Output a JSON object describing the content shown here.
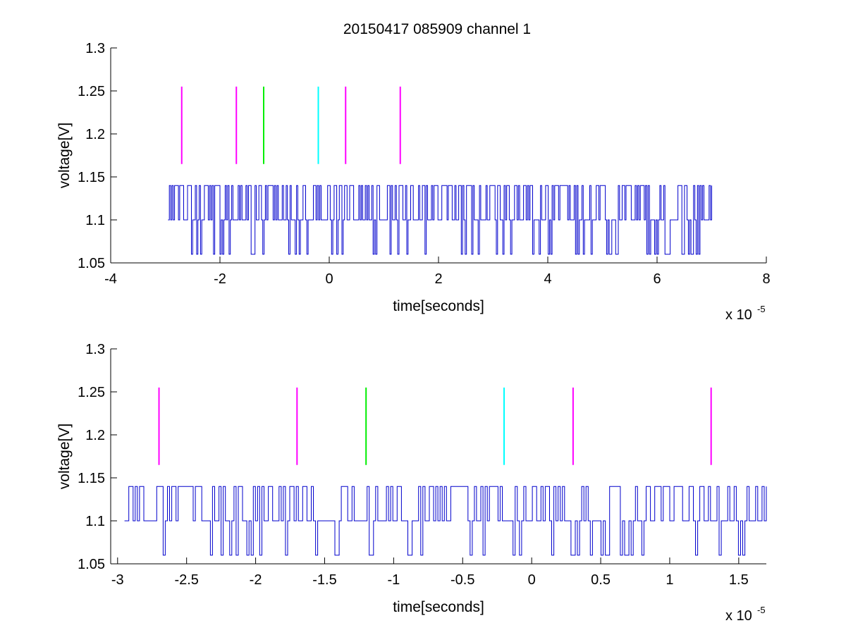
{
  "figure": {
    "title": "20150417 085909 channel 1",
    "exponent_base": "x 10",
    "exponent_power": "-5"
  },
  "colors": {
    "signal": "#0000cc",
    "marker_magenta": "#ff00ff",
    "marker_green": "#00ee00",
    "marker_cyan": "#00ffff",
    "axis": "#000000"
  },
  "chart_data": [
    {
      "type": "line",
      "title": "20150417 085909 channel 1",
      "xlabel": "time[seconds]",
      "ylabel": "voltage[V]",
      "x_scale_label": "x 10^-5",
      "xlim": [
        -4,
        8
      ],
      "ylim": [
        1.05,
        1.3
      ],
      "xticks": [
        -4,
        -2,
        0,
        2,
        4,
        6,
        8
      ],
      "xtick_labels": [
        "-4",
        "-2",
        "0",
        "2",
        "4",
        "6",
        "8"
      ],
      "yticks": [
        1.05,
        1.1,
        1.15,
        1.2,
        1.25,
        1.3
      ],
      "ytick_labels": [
        "1.05",
        "1.1",
        "1.15",
        "1.2",
        "1.25",
        "1.3"
      ],
      "grid": false,
      "signal": {
        "x_range": [
          -2.95,
          7.0
        ],
        "levels": [
          1.06,
          1.1,
          1.14
        ],
        "baseline": 1.1
      },
      "markers": [
        {
          "x": -2.7,
          "y_range": [
            1.165,
            1.255
          ],
          "color": "magenta"
        },
        {
          "x": -1.7,
          "y_range": [
            1.165,
            1.255
          ],
          "color": "magenta"
        },
        {
          "x": -1.2,
          "y_range": [
            1.165,
            1.255
          ],
          "color": "green"
        },
        {
          "x": -0.2,
          "y_range": [
            1.165,
            1.255
          ],
          "color": "cyan"
        },
        {
          "x": 0.3,
          "y_range": [
            1.165,
            1.255
          ],
          "color": "magenta"
        },
        {
          "x": 1.3,
          "y_range": [
            1.165,
            1.255
          ],
          "color": "magenta"
        }
      ]
    },
    {
      "type": "line",
      "xlabel": "time[seconds]",
      "ylabel": "voltage[V]",
      "x_scale_label": "x 10^-5",
      "xlim": [
        -3.05,
        1.7
      ],
      "ylim": [
        1.05,
        1.3
      ],
      "xticks": [
        -3,
        -2.5,
        -2,
        -1.5,
        -1,
        -0.5,
        0,
        0.5,
        1,
        1.5
      ],
      "xtick_labels": [
        "-3",
        "-2.5",
        "-2",
        "-1.5",
        "-1",
        "-0.5",
        "0",
        "0.5",
        "1",
        "1.5"
      ],
      "yticks": [
        1.05,
        1.1,
        1.15,
        1.2,
        1.25,
        1.3
      ],
      "ytick_labels": [
        "1.05",
        "1.1",
        "1.15",
        "1.2",
        "1.25",
        "1.3"
      ],
      "grid": false,
      "signal": {
        "x_range": [
          -2.95,
          1.7
        ],
        "levels": [
          1.06,
          1.1,
          1.14
        ],
        "baseline": 1.1
      },
      "markers": [
        {
          "x": -2.7,
          "y_range": [
            1.165,
            1.255
          ],
          "color": "magenta"
        },
        {
          "x": -1.7,
          "y_range": [
            1.165,
            1.255
          ],
          "color": "magenta"
        },
        {
          "x": -1.2,
          "y_range": [
            1.165,
            1.255
          ],
          "color": "green"
        },
        {
          "x": -0.2,
          "y_range": [
            1.165,
            1.255
          ],
          "color": "cyan"
        },
        {
          "x": 0.3,
          "y_range": [
            1.165,
            1.255
          ],
          "color": "magenta"
        },
        {
          "x": 1.3,
          "y_range": [
            1.165,
            1.255
          ],
          "color": "magenta"
        }
      ]
    }
  ]
}
